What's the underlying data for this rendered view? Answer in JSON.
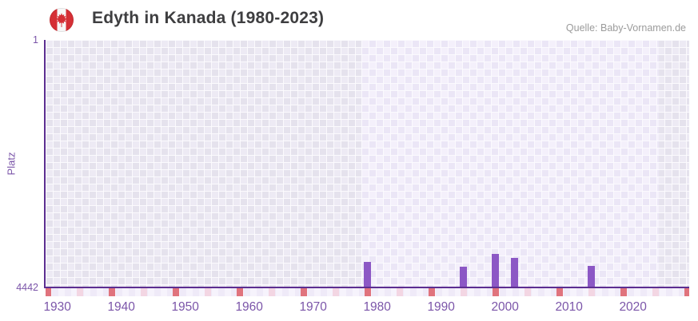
{
  "header": {
    "title": "Edyth in Kanada (1980-2023)",
    "source": "Quelle: Baby-Vornamen.de",
    "flag_icon": "canada-flag-icon"
  },
  "chart_data": {
    "type": "bar",
    "title": "Edyth in Kanada (1980-2023)",
    "ylabel": "Platz",
    "xlabel": "",
    "y_axis": {
      "min": 1,
      "max": 4442,
      "reversed": true,
      "tick_labels": [
        "1",
        "4442"
      ]
    },
    "x_axis": {
      "start_year": 1928,
      "end_year": 2028,
      "tick_labels": [
        "1930",
        "1940",
        "1950",
        "1960",
        "1970",
        "1980",
        "1990",
        "2000",
        "2010",
        "2020"
      ]
    },
    "highlight_year_range": [
      1978,
      2023
    ],
    "series": [
      {
        "name": "Platz",
        "points": [
          {
            "year": 1978,
            "rank": 3990
          },
          {
            "year": 1993,
            "rank": 4070
          },
          {
            "year": 1998,
            "rank": 3835
          },
          {
            "year": 2001,
            "rank": 3905
          },
          {
            "year": 2013,
            "rank": 4060
          }
        ]
      }
    ],
    "axis_marks": {
      "red_years": [
        1928,
        1938,
        1948,
        1958,
        1968,
        1978,
        1988,
        1998,
        2008,
        2018,
        2028
      ],
      "pink_years": [
        1933,
        1943,
        1953,
        1963,
        1973,
        1983,
        1993,
        2003,
        2013,
        2023
      ]
    },
    "colors": {
      "bar": "#8c58c5",
      "axis_line": "#5c2e91",
      "tick_label": "#7b55a9",
      "title_text": "#3e3e40",
      "source_text": "#9b9b9b",
      "red_mark": "#e0737d",
      "pink_mark": "#f3d6e3",
      "flag_red": "#d52f35",
      "strip_bg": [
        "#f6f3fc",
        "#efeaf8"
      ]
    }
  }
}
